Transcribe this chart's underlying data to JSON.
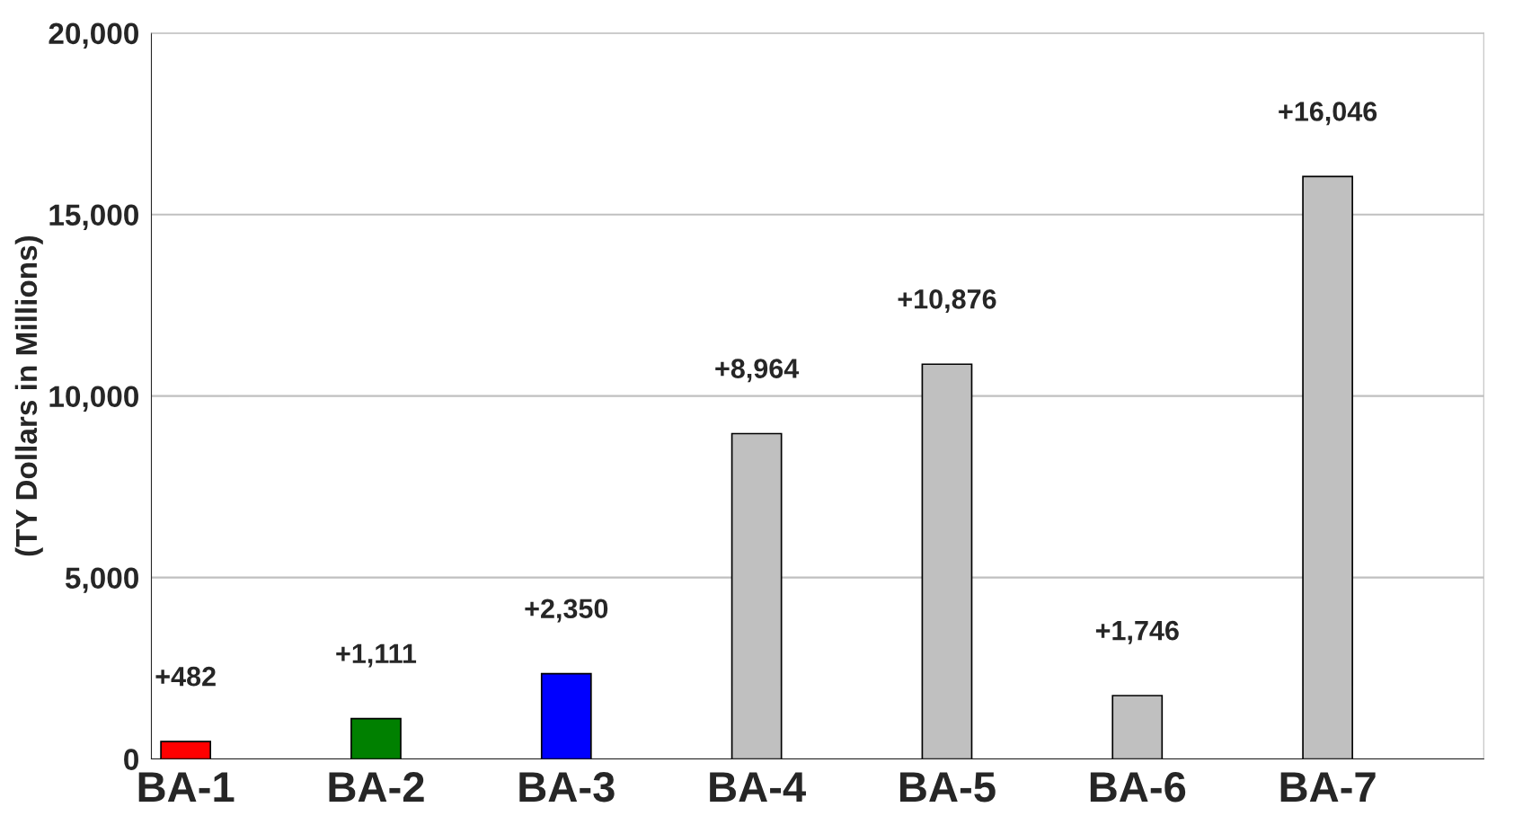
{
  "chart_data": {
    "type": "bar",
    "ylabel": "(TY Dollars in Millions)",
    "categories": [
      "BA-1",
      "BA-2",
      "BA-3",
      "BA-4",
      "BA-5",
      "BA-6",
      "BA-7"
    ],
    "values": [
      482,
      1111,
      2350,
      8964,
      10876,
      1746,
      16046
    ],
    "colors": [
      "#ff0000",
      "#008000",
      "#0000ff",
      "#c0c0c0",
      "#c0c0c0",
      "#c0c0c0",
      "#c0c0c0"
    ],
    "value_labels": [
      "+482",
      "+1,111",
      "+2,350",
      "+8,964",
      "+10,876",
      "+1,746",
      "+16,046"
    ],
    "ylim": [
      0,
      20000
    ],
    "yticks": [
      0,
      {
        "value": 5000,
        "label": "5,000"
      },
      {
        "value": 10000,
        "label": "10,000"
      },
      {
        "value": 15000,
        "label": "15,000"
      },
      {
        "value": 20000,
        "label": "20,000"
      }
    ],
    "grid": "y",
    "legend": false
  }
}
